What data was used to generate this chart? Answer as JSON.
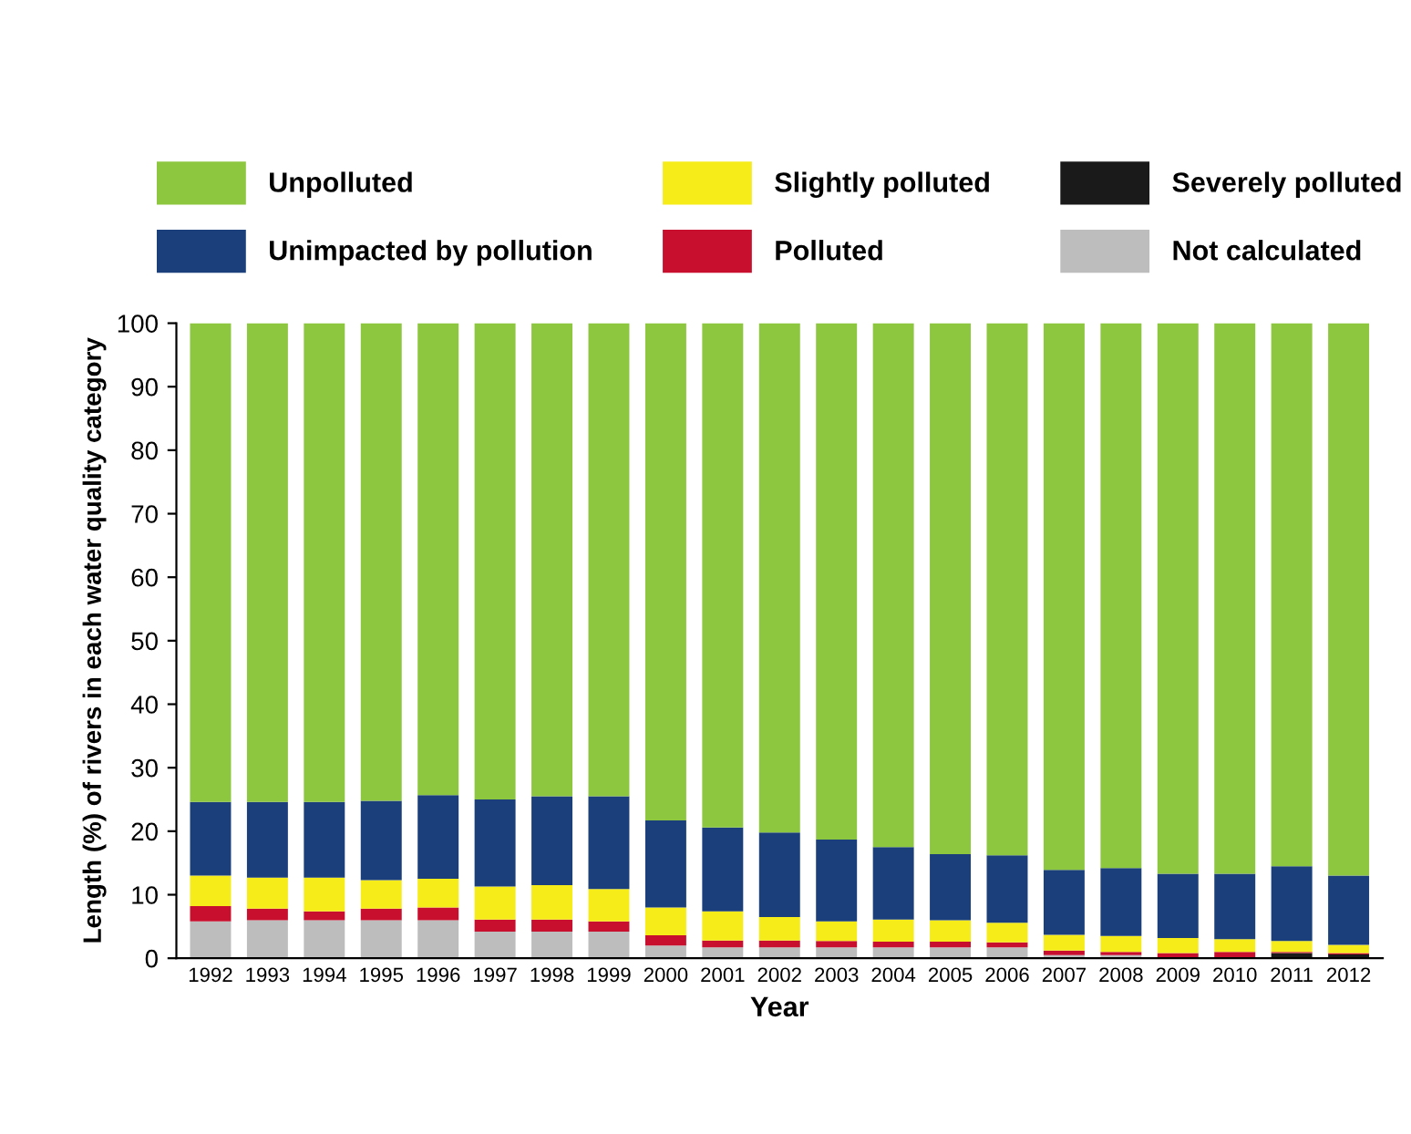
{
  "chart_data": {
    "type": "bar",
    "stacked": true,
    "xlabel": "Year",
    "ylabel": "Length (%) of rivers in each water quality category",
    "categories": [
      "1992",
      "1993",
      "1994",
      "1995",
      "1996",
      "1997",
      "1998",
      "1999",
      "2000",
      "2001",
      "2002",
      "2003",
      "2004",
      "2005",
      "2006",
      "2007",
      "2008",
      "2009",
      "2010",
      "2011",
      "2012"
    ],
    "series": [
      {
        "name": "Not calculated",
        "color": "#bdbdbd",
        "values": [
          5.8,
          6.0,
          6.0,
          6.0,
          6.0,
          4.2,
          4.2,
          4.2,
          2.0,
          1.7,
          1.7,
          1.7,
          1.7,
          1.7,
          1.7,
          0.5,
          0.5,
          0,
          0,
          0,
          0
        ]
      },
      {
        "name": "Severely polluted",
        "color": "#1a1a1a",
        "values": [
          0,
          0,
          0,
          0,
          0,
          0,
          0,
          0,
          0,
          0,
          0,
          0,
          0,
          0,
          0,
          0,
          0,
          0,
          0,
          0.8,
          0.6
        ]
      },
      {
        "name": "Polluted",
        "color": "#c8102e",
        "values": [
          2.4,
          1.8,
          1.4,
          1.8,
          2.0,
          1.9,
          1.9,
          1.6,
          1.6,
          1.1,
          1.1,
          1.0,
          0.9,
          0.9,
          0.8,
          0.7,
          0.5,
          0.8,
          1.0,
          0.2,
          0.2
        ]
      },
      {
        "name": "Slightly polluted",
        "color": "#f5ec1a",
        "values": [
          4.8,
          4.9,
          5.3,
          4.5,
          4.5,
          5.2,
          5.4,
          5.1,
          4.4,
          4.6,
          3.7,
          3.1,
          3.5,
          3.4,
          3.1,
          2.5,
          2.5,
          2.4,
          2.0,
          1.7,
          1.3
        ]
      },
      {
        "name": "Unimpacted by pollution",
        "color": "#1a3f7a",
        "values": [
          11.6,
          11.9,
          11.9,
          12.5,
          13.2,
          13.7,
          14.0,
          14.6,
          13.7,
          13.2,
          13.3,
          12.9,
          11.4,
          10.4,
          10.6,
          10.2,
          10.7,
          10.1,
          10.3,
          11.8,
          10.9
        ]
      },
      {
        "name": "Unpolluted",
        "color": "#8dc63f",
        "values": [
          75.4,
          75.4,
          75.4,
          75.2,
          74.3,
          75.0,
          74.5,
          74.5,
          78.3,
          79.4,
          80.2,
          81.3,
          82.5,
          83.6,
          83.8,
          86.1,
          85.8,
          86.7,
          86.7,
          85.5,
          87.0
        ]
      }
    ],
    "ylim": [
      0,
      100
    ],
    "yticks": [
      0,
      10,
      20,
      30,
      40,
      50,
      60,
      70,
      80,
      90,
      100
    ],
    "grid": false,
    "legend": "top"
  }
}
